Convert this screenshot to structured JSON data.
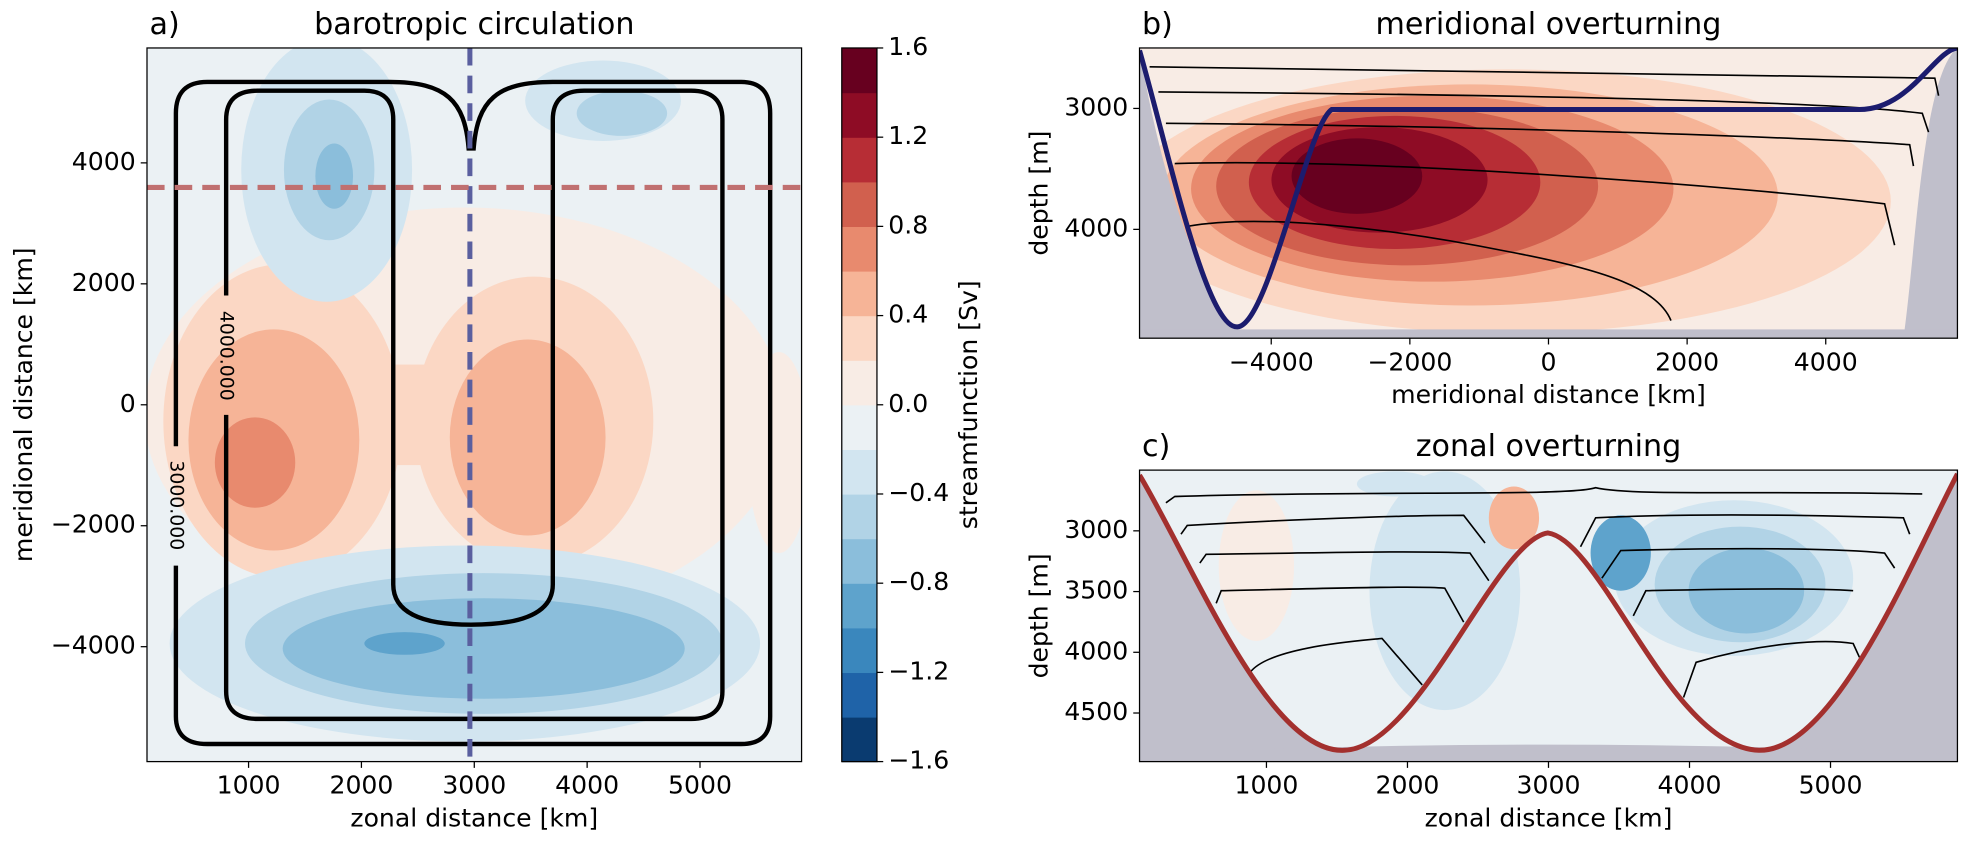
{
  "chart_data": [
    {
      "type": "contour",
      "panel_label": "a)",
      "title": "barotropic circulation",
      "xlabel": "zonal distance [km]",
      "ylabel": "meridional distance [km]",
      "xlim": [
        100,
        5900
      ],
      "ylim": [
        -5900,
        5900
      ],
      "xticks": [
        1000,
        2000,
        3000,
        4000,
        5000
      ],
      "yticks": [
        {
          "value": -4000,
          "label": "−4000"
        },
        {
          "value": -2000,
          "label": "−2000"
        },
        0,
        2000,
        4000
      ],
      "contour_labels": [
        "3000.000",
        "4000.000"
      ],
      "colorbar": {
        "label": "streamfunction [Sv]",
        "lim": [
          -1.6,
          1.6
        ],
        "ticks": [
          {
            "value": -1.6,
            "label": "−1.6"
          },
          {
            "value": -1.2,
            "label": "−1.2"
          },
          {
            "value": -0.8,
            "label": "−0.8"
          },
          {
            "value": -0.4,
            "label": "−0.4"
          },
          {
            "value": 0,
            "label": "0.0"
          },
          0.4,
          0.8,
          1.2,
          1.6
        ],
        "colors": [
          "#0a3b70",
          "#1f63a8",
          "#3a87bd",
          "#5ea3cc",
          "#8bbedb",
          "#b1d3e6",
          "#d2e5f0",
          "#ebf1f4",
          "#f8ece5",
          "#fbd7c4",
          "#f6b497",
          "#e88a6e",
          "#d1604e",
          "#b72d35",
          "#8e0c25",
          "#67001f"
        ]
      }
    },
    {
      "type": "contour",
      "panel_label": "b)",
      "title": "meridional overturning",
      "xlabel": "meridional distance [km]",
      "ylabel": "depth [m]",
      "xlim": [
        -5900,
        5900
      ],
      "ylim": [
        2500,
        4900
      ],
      "y_inverted": true,
      "xticks": [
        {
          "value": -4000,
          "label": "−4000"
        },
        {
          "value": -2000,
          "label": "−2000"
        },
        0,
        2000,
        4000
      ],
      "yticks": [
        3000,
        4000
      ]
    },
    {
      "type": "contour",
      "panel_label": "c)",
      "title": "zonal overturning",
      "xlabel": "zonal distance [km]",
      "ylabel": "depth [m]",
      "xlim": [
        100,
        5900
      ],
      "ylim": [
        2500,
        4900
      ],
      "y_inverted": true,
      "xticks": [
        1000,
        2000,
        3000,
        4000,
        5000
      ],
      "yticks": [
        3000,
        3500,
        4000,
        4500
      ]
    }
  ]
}
